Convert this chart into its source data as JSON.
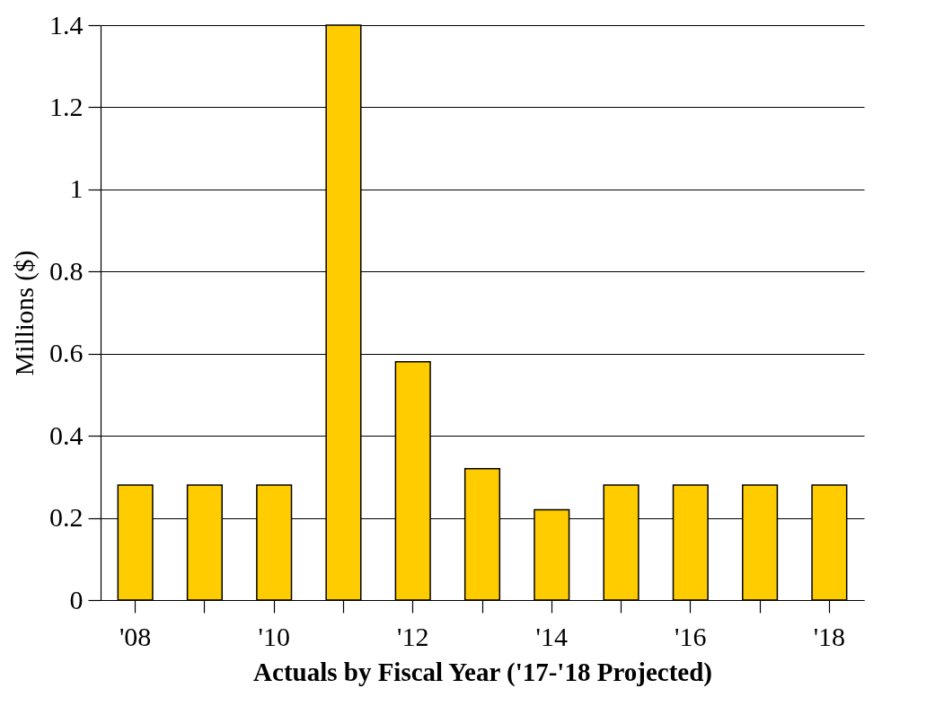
{
  "chart_data": {
    "type": "bar",
    "xlabel": "Actuals by Fiscal Year ('17-'18 Projected)",
    "ylabel": "Millions ($)",
    "categories": [
      "'08",
      null,
      "'10",
      null,
      "'12",
      null,
      "'14",
      null,
      "'16",
      null,
      "'18"
    ],
    "values": [
      0.28,
      0.28,
      0.28,
      1.4,
      0.58,
      0.32,
      0.22,
      0.28,
      0.28,
      0.28,
      0.28
    ],
    "color": "#ffcc00",
    "ylim": [
      0,
      1.4
    ],
    "yticks": [
      0,
      0.2,
      0.4,
      0.6,
      0.8,
      1,
      1.2,
      1.4
    ],
    "grid": "y"
  }
}
